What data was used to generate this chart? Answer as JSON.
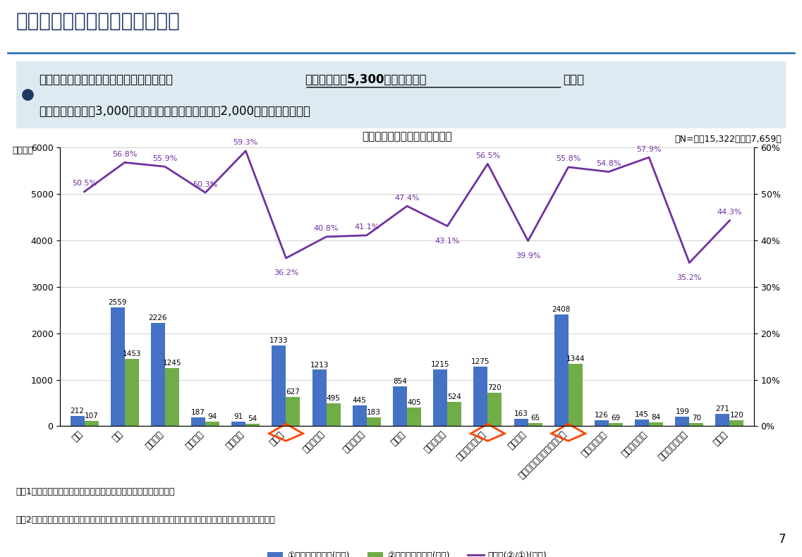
{
  "categories": [
    "銀行",
    "地銀",
    "信用金庫",
    "信用組合",
    "商工中金",
    "税理士",
    "税理士法人",
    "公認会計士",
    "商工会",
    "商工会議所",
    "中小企業診断士",
    "行政書士",
    "民間コンサルティング会社",
    "一般社団法人",
    "公益財団法人",
    "コンサルタント",
    "その他"
  ],
  "blue_values": [
    212,
    2559,
    2226,
    187,
    91,
    1733,
    1213,
    445,
    854,
    1215,
    1275,
    163,
    2408,
    126,
    145,
    199,
    271
  ],
  "green_values": [
    107,
    1453,
    1245,
    94,
    54,
    627,
    495,
    183,
    405,
    524,
    720,
    65,
    1344,
    69,
    84,
    70,
    120
  ],
  "rate_values": [
    50.5,
    56.8,
    55.9,
    50.3,
    59.3,
    36.2,
    40.8,
    41.1,
    47.4,
    43.1,
    56.5,
    39.9,
    55.8,
    54.8,
    57.9,
    35.2,
    44.3
  ],
  "highlighted_indices": [
    5,
    10,
    12
  ],
  "chart_title": "認定支援機関別応募・採択状況",
  "main_title": "認定支援機関別応募・採択状況",
  "n_label": "（N=青軸15,322、緑軸7,659）",
  "y_label_left": "（件数）",
  "ylim_left": [
    0,
    6000
  ],
  "ylim_right": [
    0,
    60
  ],
  "blue_color": "#4472C4",
  "green_color": "#70AD47",
  "line_color": "#7030A0",
  "legend_labels": [
    "①応募案件ベース(左軸)",
    "②採択案件ベース(左軸)",
    "採択率(②/①)(右軸)"
  ],
  "note1": "（注1：連携体で認定支援機関要件免除事業者を除いています。）",
  "note2": "（注2：本資料では複数の企業で連携している申請を構成員数に関わらず１件としてカウントしています。）",
  "page_number": "7",
  "background_color": "#FFFFFF",
  "header_bg_color": "#DEEAF1",
  "title_underline_color": "#2E75B6",
  "highlight_box_color": "#FF4500",
  "grid_color": "#D0D0D0"
}
